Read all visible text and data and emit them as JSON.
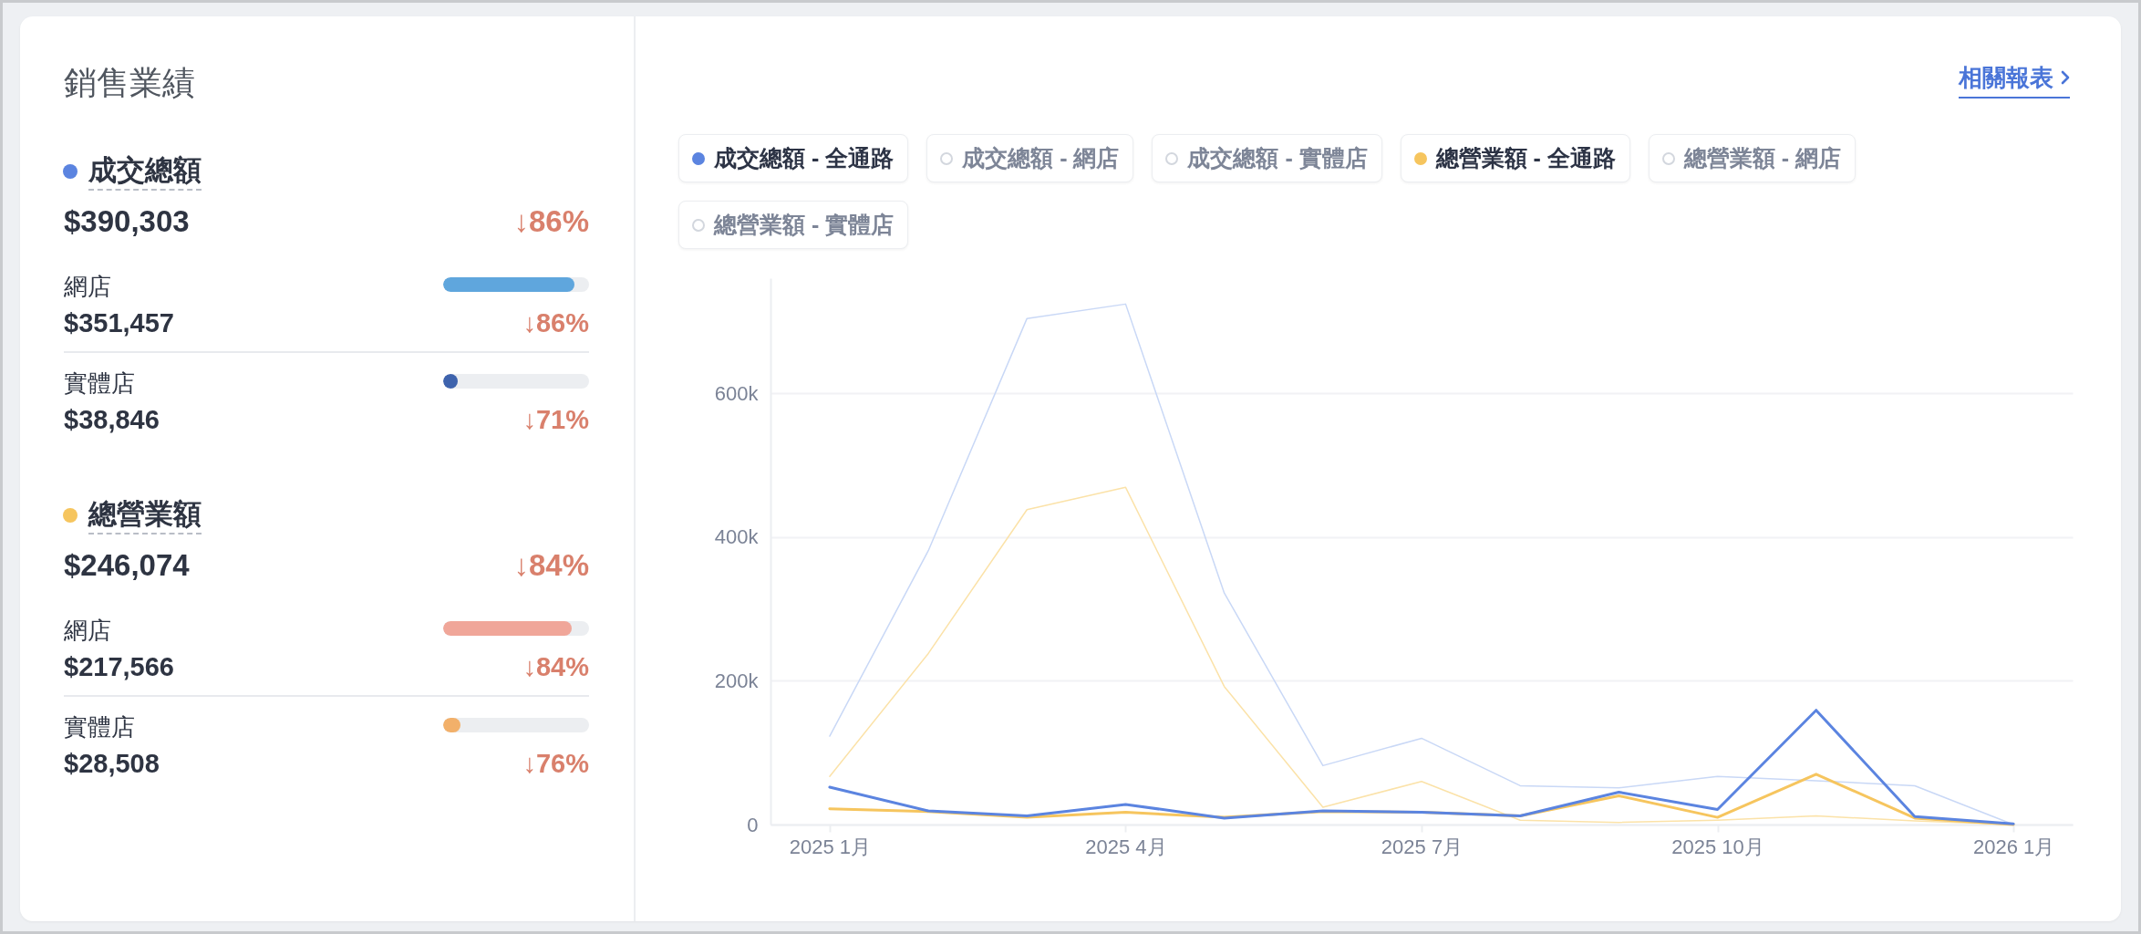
{
  "chart_data": [
    {
      "type": "other",
      "title": "銷售業績",
      "annotations": [
        "成交總額",
        "$390,303",
        "↓86%",
        "網店",
        "$351,457",
        "↓86%",
        "實體店",
        "$38,846",
        "↓71%",
        "總營業額",
        "$246,074",
        "↓84%",
        "網店",
        "$217,566",
        "↓84%",
        "實體店",
        "$28,508",
        "↓76%"
      ]
    },
    {
      "type": "line",
      "annotations": [
        "相關報表"
      ],
      "categories": [
        "2025 1月",
        null,
        null,
        "2025 4月",
        null,
        null,
        "2025 7月",
        null,
        null,
        "2025 10月",
        null,
        null,
        "2026 1月"
      ],
      "series": [
        {
          "name": "成交總額 - 全通路",
          "color": "#5b84e0",
          "values": [
            52000,
            19000,
            12000,
            28000,
            9000,
            19000,
            17000,
            12000,
            45000,
            21000,
            159000,
            11000,
            1000
          ]
        },
        {
          "name": "成交總額 - 網店",
          "color": "#d3d7de",
          "values": [
            null,
            null,
            null,
            null,
            null,
            null,
            null,
            null,
            null,
            null,
            null,
            null,
            null
          ]
        },
        {
          "name": "成交總額 - 實體店",
          "color": "#d3d7de",
          "values": [
            null,
            null,
            null,
            null,
            null,
            null,
            null,
            null,
            null,
            null,
            null,
            null,
            null
          ]
        },
        {
          "name": "總營業額 - 全通路",
          "color": "#f6c55e",
          "values": [
            22000,
            18000,
            10000,
            17000,
            10000,
            18000,
            17000,
            12000,
            40000,
            10000,
            70000,
            9000,
            0
          ]
        },
        {
          "name": "總營業額 - 網店",
          "color": "#d3d7de",
          "values": [
            null,
            null,
            null,
            null,
            null,
            null,
            null,
            null,
            null,
            null,
            null,
            null,
            null
          ]
        },
        {
          "name": "總營業額 - 實體店",
          "color": "#d3d7de",
          "values": [
            null,
            null,
            null,
            null,
            null,
            null,
            null,
            null,
            null,
            null,
            null,
            null,
            null
          ]
        },
        {
          "color": "#c9d8f6",
          "values": [
            123000,
            381000,
            704000,
            724000,
            322000,
            82000,
            120000,
            54000,
            51000,
            67000,
            61000,
            54000,
            0
          ]
        },
        {
          "color": "#fbe2a8",
          "values": [
            67000,
            238000,
            438000,
            469000,
            192000,
            24000,
            60000,
            6000,
            3000,
            6000,
            12000,
            5000,
            0
          ]
        }
      ],
      "ylim": [
        0,
        760000
      ],
      "yticks": [
        0,
        {
          "value": 200000,
          "label": "200k"
        },
        {
          "value": 400000,
          "label": "400k"
        },
        {
          "value": 600000,
          "label": "600k"
        }
      ],
      "grid": "y",
      "legend": "top left"
    }
  ]
}
